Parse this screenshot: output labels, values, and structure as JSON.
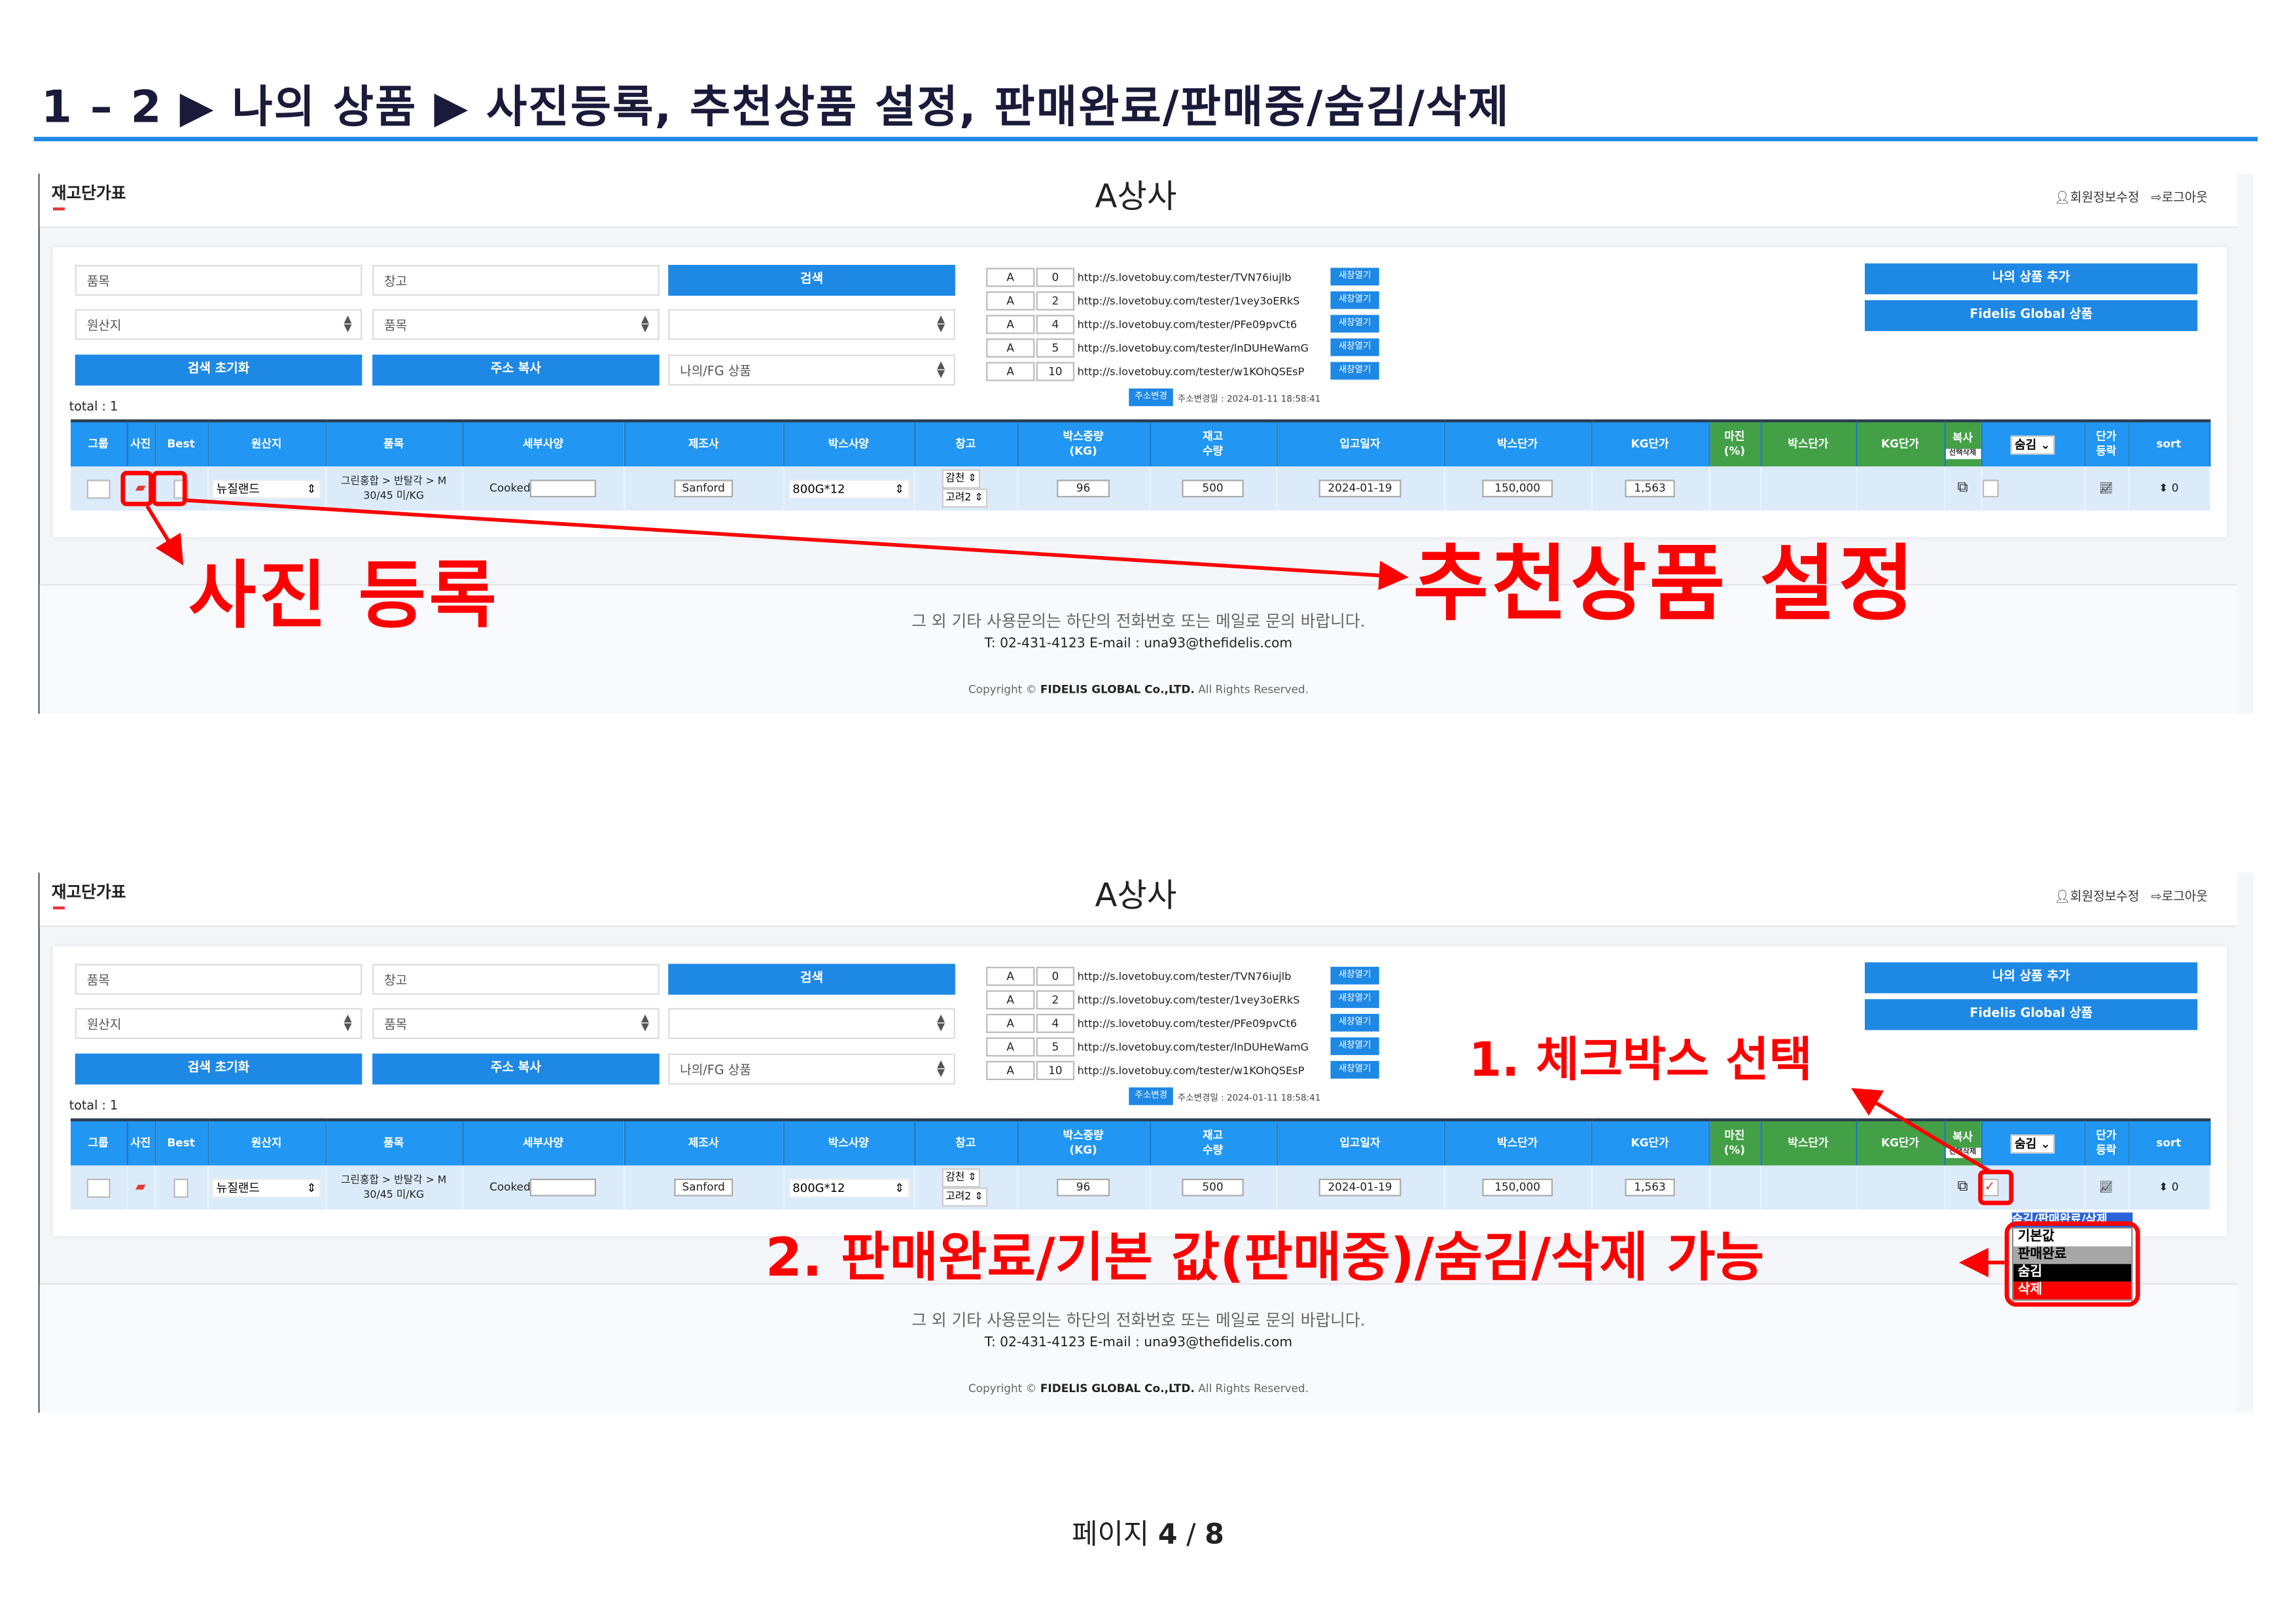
{
  "doc": {
    "title": "1 – 2 ▶ 나의 상품 ▶ 사진등록, 추천상품 설정, 판매완료/판매중/숨김/삭제",
    "page_label": "페이지",
    "page_current": "4",
    "page_sep": "/",
    "page_total": "8"
  },
  "screen": {
    "brand": "재고단가표",
    "company": "A상사",
    "links": {
      "profile": "회원정보수정",
      "logout": "로그아웃"
    },
    "search": {
      "item_placeholder": "품목",
      "warehouse_placeholder": "창고",
      "search_button": "검색",
      "origin_select": "원산지",
      "item_select": "품목",
      "category_select": "",
      "reset_button": "검색 초기화",
      "copy_address_button": "주소 복사",
      "product_scope_select": "나의/FG 상품"
    },
    "urls": [
      {
        "group": "A",
        "num": "0",
        "url": "http://s.lovetobuy.com/tester/TVN76iujlb",
        "open": "새창열기"
      },
      {
        "group": "A",
        "num": "2",
        "url": "http://s.lovetobuy.com/tester/1vey3oERkS",
        "open": "새창열기"
      },
      {
        "group": "A",
        "num": "4",
        "url": "http://s.lovetobuy.com/tester/PFe09pvCt6",
        "open": "새창열기"
      },
      {
        "group": "A",
        "num": "5",
        "url": "http://s.lovetobuy.com/tester/lnDUHeWamG",
        "open": "새창열기"
      },
      {
        "group": "A",
        "num": "10",
        "url": "http://s.lovetobuy.com/tester/w1KOhQSEsP",
        "open": "새창열기"
      }
    ],
    "address_change_button": "주소변경",
    "address_changed": "주소변경일 : 2024-01-11 18:58:41",
    "add_product_button": "나의 상품 추가",
    "fidelis_button": "Fidelis Global 상품",
    "total": "total : 1",
    "columns": [
      "그룹",
      "사진",
      "Best",
      "원산지",
      "품목",
      "세부사양",
      "제조사",
      "박스사양",
      "창고",
      "박스중량\n(KG)",
      "재고\n수량",
      "입고일자",
      "박스단가",
      "KG단가",
      "마진\n(%)",
      "박스단가",
      "KG단가",
      "복사",
      "",
      "단가\n등락",
      "sort"
    ],
    "copy_delete_label": "선택삭제",
    "hide_select": "숨김",
    "row": {
      "origin": "뉴질랜드",
      "item_line1": "그린홍합 > 반탈각 > M",
      "item_line2": "30/45 미/KG",
      "detail": "Cooked",
      "maker": "Sanford",
      "box_spec": "800G*12",
      "warehouse1": "감천",
      "warehouse2": "고려2",
      "box_weight": "96",
      "stock": "500",
      "date": "2024-01-19",
      "box_price": "150,000",
      "kg_price": "1,563",
      "sort": "0"
    },
    "footer": {
      "notice": "그 외 기타 사용문의는 하단의 전화번호 또는 메일로 문의 바랍니다.",
      "contact": "T: 02-431-4123 E-mail : una93@thefidelis.com",
      "copyright_pre": "Copyright ©",
      "copyright_company": "FIDELIS GLOBAL Co.,LTD.",
      "copyright_post": "All Rights Reserved."
    }
  },
  "dropdown": {
    "header": "숨김/판매완료/삭제",
    "options": [
      {
        "label": "기본값",
        "bg": "#ffffff",
        "fg": "#000000"
      },
      {
        "label": "판매완료",
        "bg": "#a6a6a6",
        "fg": "#000000"
      },
      {
        "label": "숨김",
        "bg": "#000000",
        "fg": "#ffffff"
      },
      {
        "label": "삭제",
        "bg": "#ff0000",
        "fg": "#ffffff"
      }
    ]
  },
  "annotations": {
    "recommend": "추천상품 설정",
    "photo": "사진 등록",
    "step1": "1. 체크박스 선택",
    "step2": "2. 판매완료/기본 값(판매중)/숨김/삭제 가능"
  },
  "colors": {
    "accent": "#1e88e5",
    "green": "#43a047",
    "annotation": "#ff0000"
  }
}
